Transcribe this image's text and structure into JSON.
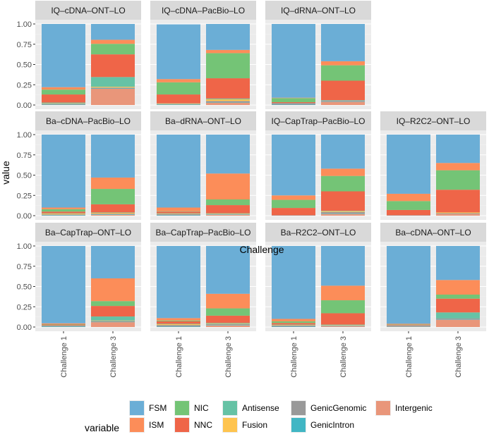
{
  "chart_data": {
    "type": "bar",
    "stacked": true,
    "xlabel": "Challenge",
    "ylabel": "value",
    "ylim": [
      0,
      1
    ],
    "yticks": [
      "0.00",
      "0.25",
      "0.50",
      "0.75",
      "1.00"
    ],
    "categories": [
      "Challenge 1",
      "Challenge 3"
    ],
    "legend": {
      "title": "variable",
      "position": "bottom",
      "entries": [
        {
          "name": "FSM",
          "color": "#6baed6"
        },
        {
          "name": "ISM",
          "color": "#fc8d59"
        },
        {
          "name": "NIC",
          "color": "#74c476"
        },
        {
          "name": "NNC",
          "color": "#ef6548"
        },
        {
          "name": "Antisense",
          "color": "#66c2a5"
        },
        {
          "name": "Fusion",
          "color": "#fec44f"
        },
        {
          "name": "GenicGenomic",
          "color": "#999999"
        },
        {
          "name": "GenicIntron",
          "color": "#41b6c4"
        },
        {
          "name": "Intergenic",
          "color": "#e9967a"
        }
      ]
    },
    "stack_order": [
      "Intergenic",
      "GenicIntron",
      "GenicGenomic",
      "Fusion",
      "Antisense",
      "NNC",
      "NIC",
      "ISM",
      "FSM"
    ],
    "panels": [
      {
        "title": "IQ–cDNA–ONT–LO",
        "bars": [
          {
            "Intergenic": 0.0,
            "GenicIntron": 0.005,
            "GenicGenomic": 0.01,
            "Fusion": 0.005,
            "Antisense": 0.01,
            "NNC": 0.1,
            "NIC": 0.06,
            "ISM": 0.03,
            "FSM": 0.78
          },
          {
            "Intergenic": 0.2,
            "GenicIntron": 0.005,
            "GenicGenomic": 0.01,
            "Fusion": 0.01,
            "Antisense": 0.12,
            "NNC": 0.28,
            "NIC": 0.13,
            "ISM": 0.05,
            "FSM": 0.195
          }
        ]
      },
      {
        "title": "IQ–cDNA–PacBio–LO",
        "bars": [
          {
            "Intergenic": 0.0,
            "GenicIntron": 0.005,
            "GenicGenomic": 0.005,
            "Fusion": 0.005,
            "Antisense": 0.005,
            "NNC": 0.11,
            "NIC": 0.15,
            "ISM": 0.04,
            "FSM": 0.675
          },
          {
            "Intergenic": 0.03,
            "GenicIntron": 0.005,
            "GenicGenomic": 0.015,
            "Fusion": 0.02,
            "Antisense": 0.01,
            "NNC": 0.25,
            "NIC": 0.31,
            "ISM": 0.04,
            "FSM": 0.32
          }
        ]
      },
      {
        "title": "IQ–dRNA–ONT–LO",
        "bars": [
          {
            "Intergenic": 0.0,
            "GenicIntron": 0.005,
            "GenicGenomic": 0.02,
            "Fusion": 0.0,
            "Antisense": 0.0,
            "NNC": 0.01,
            "NIC": 0.05,
            "ISM": 0.005,
            "FSM": 0.91
          },
          {
            "Intergenic": 0.04,
            "GenicIntron": 0.005,
            "GenicGenomic": 0.01,
            "Fusion": 0.0,
            "Antisense": 0.005,
            "NNC": 0.24,
            "NIC": 0.19,
            "ISM": 0.05,
            "FSM": 0.46
          }
        ]
      },
      {
        "title": "Ba–cDNA–PacBio–LO",
        "bars": [
          {
            "Intergenic": 0.0,
            "GenicIntron": 0.005,
            "GenicGenomic": 0.01,
            "Fusion": 0.01,
            "Antisense": 0.005,
            "NNC": 0.02,
            "NIC": 0.03,
            "ISM": 0.02,
            "FSM": 0.9
          },
          {
            "Intergenic": 0.01,
            "GenicIntron": 0.005,
            "GenicGenomic": 0.01,
            "Fusion": 0.01,
            "Antisense": 0.005,
            "NNC": 0.1,
            "NIC": 0.19,
            "ISM": 0.14,
            "FSM": 0.53
          }
        ]
      },
      {
        "title": "Ba–dRNA–ONT–LO",
        "bars": [
          {
            "Intergenic": 0.0,
            "GenicIntron": 0.005,
            "GenicGenomic": 0.015,
            "Fusion": 0.005,
            "Antisense": 0.005,
            "NNC": 0.02,
            "NIC": 0.005,
            "ISM": 0.045,
            "FSM": 0.9
          },
          {
            "Intergenic": 0.01,
            "GenicIntron": 0.005,
            "GenicGenomic": 0.005,
            "Fusion": 0.005,
            "Antisense": 0.005,
            "NNC": 0.1,
            "NIC": 0.07,
            "ISM": 0.32,
            "FSM": 0.48
          }
        ]
      },
      {
        "title": "IQ–CapTrap–PacBio–LO",
        "bars": [
          {
            "Intergenic": 0.0,
            "GenicIntron": 0.0,
            "GenicGenomic": 0.005,
            "Fusion": 0.0,
            "Antisense": 0.0,
            "NNC": 0.09,
            "NIC": 0.1,
            "ISM": 0.055,
            "FSM": 0.75
          },
          {
            "Intergenic": 0.02,
            "GenicIntron": 0.005,
            "GenicGenomic": 0.02,
            "Fusion": 0.01,
            "Antisense": 0.005,
            "NNC": 0.24,
            "NIC": 0.19,
            "ISM": 0.09,
            "FSM": 0.42
          }
        ]
      },
      {
        "title": "IQ–R2C2–ONT–LO",
        "bars": [
          {
            "Intergenic": 0.0,
            "GenicIntron": 0.0,
            "GenicGenomic": 0.005,
            "Fusion": 0.0,
            "Antisense": 0.0,
            "NNC": 0.065,
            "NIC": 0.11,
            "ISM": 0.09,
            "FSM": 0.73
          },
          {
            "Intergenic": 0.02,
            "GenicIntron": 0.0,
            "GenicGenomic": 0.01,
            "Fusion": 0.01,
            "Antisense": 0.0,
            "NNC": 0.28,
            "NIC": 0.24,
            "ISM": 0.09,
            "FSM": 0.35
          }
        ]
      },
      {
        "title": "Ba–CapTrap–ONT–LO",
        "bars": [
          {
            "Intergenic": 0.0,
            "GenicIntron": 0.005,
            "GenicGenomic": 0.01,
            "Fusion": 0.0,
            "Antisense": 0.005,
            "NNC": 0.01,
            "NIC": 0.005,
            "ISM": 0.01,
            "FSM": 0.955
          },
          {
            "Intergenic": 0.06,
            "GenicIntron": 0.005,
            "GenicGenomic": 0.01,
            "Fusion": 0.005,
            "Antisense": 0.05,
            "NNC": 0.13,
            "NIC": 0.06,
            "ISM": 0.28,
            "FSM": 0.4
          }
        ]
      },
      {
        "title": "Ba–CapTrap–PacBio–LO",
        "bars": [
          {
            "Intergenic": 0.0,
            "GenicIntron": 0.005,
            "GenicGenomic": 0.02,
            "Fusion": 0.01,
            "Antisense": 0.005,
            "NNC": 0.03,
            "NIC": 0.01,
            "ISM": 0.03,
            "FSM": 0.89
          },
          {
            "Intergenic": 0.02,
            "GenicIntron": 0.005,
            "GenicGenomic": 0.01,
            "Fusion": 0.005,
            "Antisense": 0.01,
            "NNC": 0.09,
            "NIC": 0.09,
            "ISM": 0.18,
            "FSM": 0.59
          }
        ]
      },
      {
        "title": "Ba–R2C2–ONT–LO",
        "bars": [
          {
            "Intergenic": 0.0,
            "GenicIntron": 0.005,
            "GenicGenomic": 0.015,
            "Fusion": 0.005,
            "Antisense": 0.005,
            "NNC": 0.02,
            "NIC": 0.02,
            "ISM": 0.03,
            "FSM": 0.9
          },
          {
            "Intergenic": 0.01,
            "GenicIntron": 0.005,
            "GenicGenomic": 0.005,
            "Fusion": 0.005,
            "Antisense": 0.005,
            "NNC": 0.14,
            "NIC": 0.16,
            "ISM": 0.18,
            "FSM": 0.49
          }
        ]
      },
      {
        "title": "Ba–cDNA–ONT–LO",
        "bars": [
          {
            "Intergenic": 0.005,
            "GenicIntron": 0.005,
            "GenicGenomic": 0.01,
            "Fusion": 0.0,
            "Antisense": 0.0,
            "NNC": 0.005,
            "NIC": 0.005,
            "ISM": 0.01,
            "FSM": 0.96
          },
          {
            "Intergenic": 0.09,
            "GenicIntron": 0.005,
            "GenicGenomic": 0.01,
            "Fusion": 0.0,
            "Antisense": 0.075,
            "NNC": 0.17,
            "NIC": 0.05,
            "ISM": 0.18,
            "FSM": 0.42
          }
        ]
      }
    ]
  }
}
